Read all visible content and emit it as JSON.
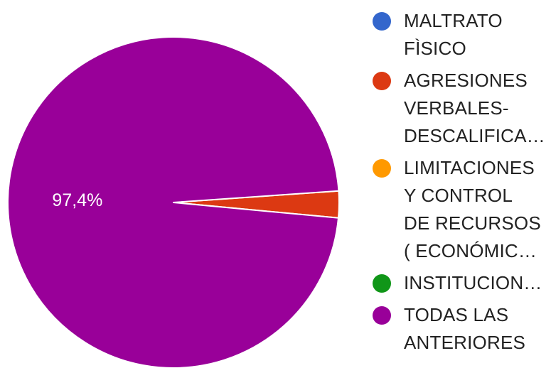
{
  "chart_data": {
    "type": "pie",
    "title": "",
    "start_angle_deg": -4,
    "slices": [
      {
        "label": "MALTRATO FÌSICO",
        "legend_lines": "MALTRATO\nFÌSICO",
        "value": 0,
        "color": "#3366cc"
      },
      {
        "label": "AGRESIONES VERBALES- DESCALIFICA…",
        "legend_lines": "AGRESIONES\nVERBALES-\nDESCALIFICA…",
        "value": 2.6,
        "color": "#dc3912"
      },
      {
        "label": "LIMITACIONES Y CONTROL DE RECURSOS ( ECONÓMIC…",
        "legend_lines": "LIMITACIONES\nY CONTROL\nDE RECURSOS\n( ECONÓMIC…",
        "value": 0,
        "color": "#ff9900"
      },
      {
        "label": "INSTITUCION…",
        "legend_lines": "INSTITUCION…",
        "value": 0,
        "color": "#109618"
      },
      {
        "label": "TODAS LAS ANTERIORES",
        "legend_lines": "TODAS LAS\nANTERIORES",
        "value": 97.4,
        "color": "#990099"
      }
    ],
    "data_labels": [
      {
        "slice": 4,
        "text": "97,4%"
      }
    ],
    "legend_position": "right"
  }
}
